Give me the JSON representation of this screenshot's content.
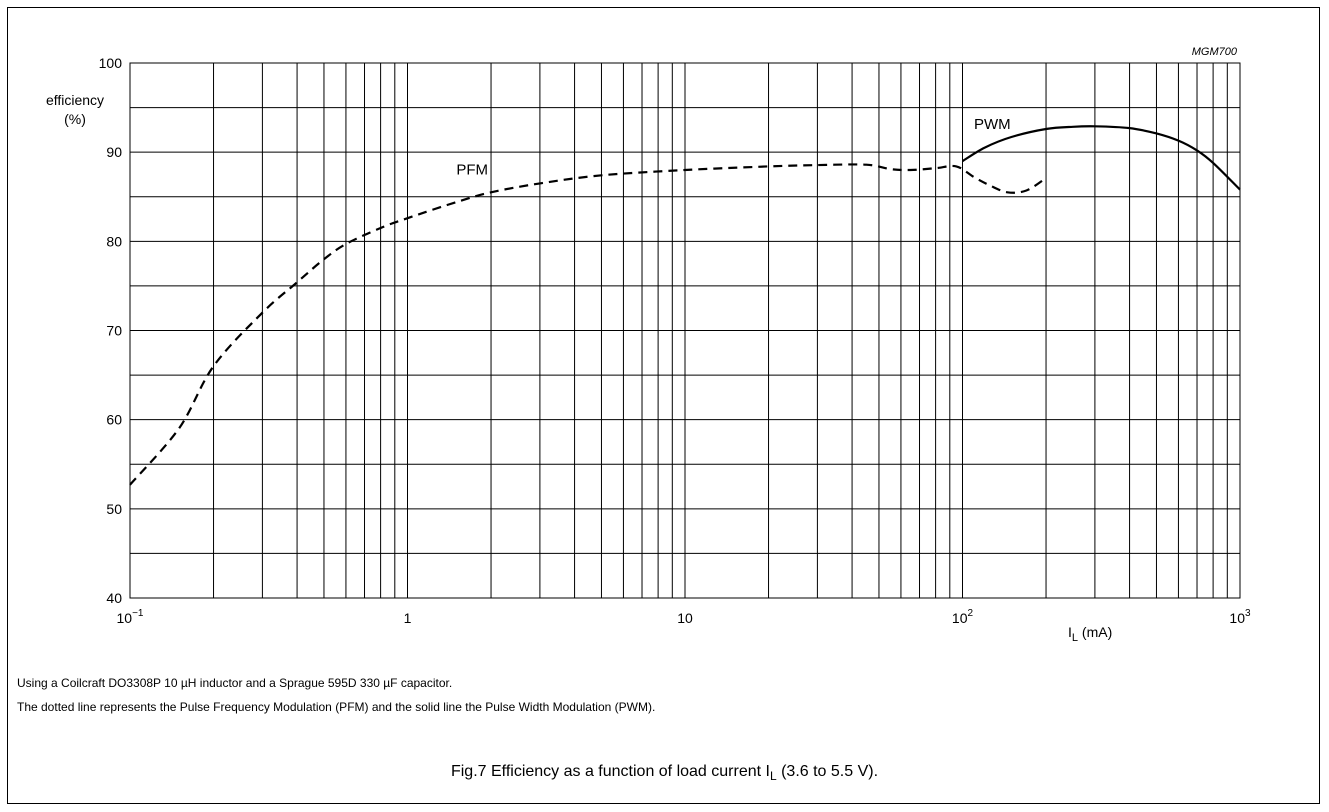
{
  "chart_data": {
    "type": "line",
    "figure_code": "MGM700",
    "ylabel_line1": "efficiency",
    "ylabel_line2": "(%)",
    "xlabel_main": "I",
    "xlabel_sub": "L",
    "xlabel_unit": " (mA)",
    "x_scale": "log",
    "xlim": [
      0.1,
      1000
    ],
    "ylim": [
      40,
      100
    ],
    "grid": true,
    "y_ticks": [
      {
        "value": 40,
        "label": "40"
      },
      {
        "value": 50,
        "label": "50"
      },
      {
        "value": 60,
        "label": "60"
      },
      {
        "value": 70,
        "label": "70"
      },
      {
        "value": 80,
        "label": "80"
      },
      {
        "value": 90,
        "label": "90"
      },
      {
        "value": 100,
        "label": "100"
      }
    ],
    "x_ticks": [
      {
        "value": 0.1,
        "base": "10",
        "exp": "−1"
      },
      {
        "value": 1,
        "base": "1",
        "exp": ""
      },
      {
        "value": 10,
        "base": "10",
        "exp": ""
      },
      {
        "value": 100,
        "base": "10",
        "exp": "2"
      },
      {
        "value": 1000,
        "base": "10",
        "exp": "3"
      }
    ],
    "series": [
      {
        "name": "PFM",
        "style": "dashed",
        "label_at": [
          1.5,
          87.5
        ],
        "x": [
          0.1,
          0.15,
          0.2,
          0.3,
          0.4,
          0.5,
          0.6,
          0.8,
          1,
          1.5,
          2,
          3,
          5,
          10,
          20,
          30,
          45,
          55,
          65,
          80,
          95,
          110,
          125,
          145,
          170,
          200
        ],
        "y": [
          52.7,
          59,
          66,
          72,
          75.4,
          78,
          79.7,
          81.5,
          82.6,
          84.4,
          85.5,
          86.5,
          87.4,
          88,
          88.4,
          88.55,
          88.6,
          88.1,
          88,
          88.2,
          88.4,
          87.2,
          86.3,
          85.5,
          85.7,
          87.1
        ]
      },
      {
        "name": "PWM",
        "style": "solid",
        "label_at": [
          110,
          92.6
        ],
        "x": [
          100,
          120,
          150,
          200,
          250,
          300,
          400,
          500,
          600,
          700,
          800,
          1000
        ],
        "y": [
          89,
          90.5,
          91.7,
          92.6,
          92.85,
          92.9,
          92.7,
          92.1,
          91.3,
          90.2,
          88.8,
          85.8
        ]
      }
    ]
  },
  "notes": {
    "line1": "Using a Coilcraft DO3308P 10 µH inductor and a Sprague 595D 330 µF capacitor.",
    "line2": "The dotted line represents the Pulse Frequency Modulation (PFM) and the solid line the Pulse Width Modulation (PWM)."
  },
  "caption": {
    "prefix": "Fig.7  Efficiency as a function of load current I",
    "sub": "L",
    "suffix": " (3.6 to 5.5 V)."
  }
}
